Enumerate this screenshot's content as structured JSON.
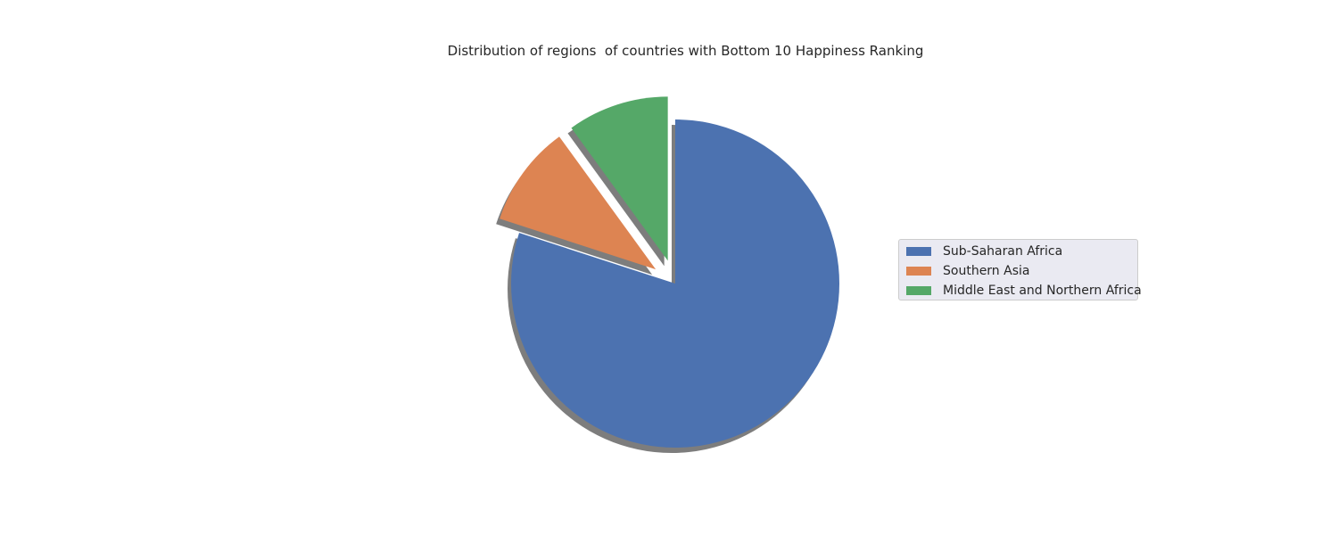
{
  "chart_data": {
    "type": "pie",
    "title": "Distribution of regions  of countries with Bottom 10 Happiness Ranking",
    "categories": [
      "Sub-Saharan Africa",
      "Southern Asia",
      "Middle East and Northern Africa"
    ],
    "values": [
      8,
      1,
      1
    ],
    "colors": [
      "#4c72b0",
      "#dd8452",
      "#55a868"
    ],
    "exploded": [
      false,
      true,
      true
    ],
    "shadow": true,
    "start_angle_deg": 90,
    "counterclock": false,
    "legend_loc": "center-right"
  }
}
